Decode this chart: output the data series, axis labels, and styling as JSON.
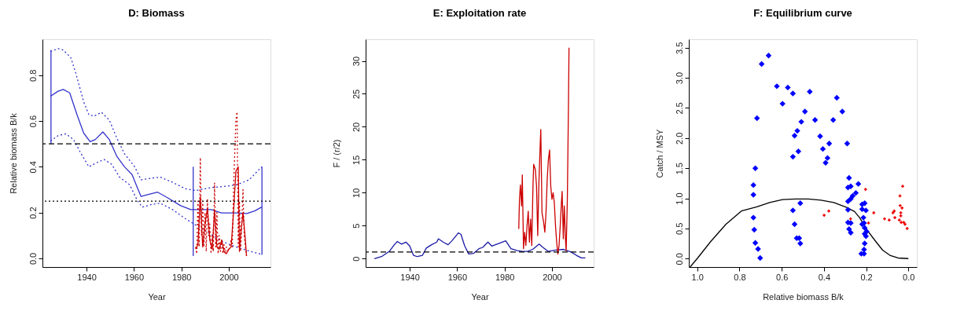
{
  "chart_data": [
    {
      "type": "line",
      "title": "D: Biomass",
      "xlabel": "Year",
      "ylabel": "Relative biomass B/k",
      "xlim": [
        1921.4,
        2017.6
      ],
      "xticks": [
        1940,
        1960,
        1980,
        2000
      ],
      "ylim": [
        -0.038,
        0.957
      ],
      "yticks": [
        {
          "value": 0,
          "label": "0.0"
        },
        {
          "value": 0.2,
          "label": "0.2"
        },
        {
          "value": 0.4,
          "label": "0.4"
        },
        {
          "value": 0.6,
          "label": "0.6"
        },
        {
          "value": 0.8,
          "label": "0.8"
        }
      ],
      "grid": false,
      "ref_lines": [
        {
          "axis": "y",
          "value": 0.5,
          "color": "#000000",
          "line_style": "dashed"
        },
        {
          "axis": "y",
          "value": 0.25,
          "color": "#000000",
          "line_style": "dotted"
        }
      ],
      "series": [
        {
          "color": "#3333cc",
          "line_style": "solid",
          "x": [
            1924.8,
            1928,
            1930.2,
            1932.9,
            1936,
            1938.8,
            1941.5,
            1943.7,
            1946.9,
            1949.6,
            1952.8,
            1956,
            1959.2,
            1961.4,
            1963,
            1965.7,
            1970,
            1974.3,
            1979.7,
            1984,
            1992.6,
            1996.9,
            2003.3,
            2007.6,
            2010.9,
            2013.9
          ],
          "values": [
            0.708,
            0.73,
            0.738,
            0.723,
            0.627,
            0.547,
            0.51,
            0.519,
            0.552,
            0.519,
            0.445,
            0.4,
            0.366,
            0.309,
            0.27,
            0.278,
            0.289,
            0.264,
            0.23,
            0.213,
            0.213,
            0.198,
            0.198,
            0.196,
            0.207,
            0.224
          ]
        },
        {
          "color": "#3333cc",
          "line_style": "dotted",
          "x": [
            1924.8,
            1928,
            1930.2,
            1933.4,
            1935.5,
            1938.8,
            1941,
            1943.1,
            1946.3,
            1949.6,
            1952.8,
            1956,
            1960.3,
            1963,
            1966.7,
            1971,
            1976.3,
            1981.7,
            1986,
            1992.5,
            1998.9,
            2003.3,
            2008.6,
            2013.9
          ],
          "values": [
            0.904,
            0.916,
            0.91,
            0.876,
            0.808,
            0.683,
            0.627,
            0.621,
            0.638,
            0.604,
            0.525,
            0.457,
            0.4,
            0.343,
            0.349,
            0.355,
            0.332,
            0.304,
            0.296,
            0.309,
            0.315,
            0.321,
            0.343,
            0.4
          ]
        },
        {
          "color": "#3333cc",
          "line_style": "dotted",
          "x": [
            1924.8,
            1928,
            1931.3,
            1934.5,
            1937.7,
            1941,
            1944.2,
            1947.4,
            1950.6,
            1953.9,
            1958.2,
            1961.4,
            1963.5,
            1967.8,
            1971,
            1976.3,
            1981.7,
            1987.1,
            1992.5,
            1997.8,
            2003.3,
            2008.6,
            2013.9
          ],
          "values": [
            0.513,
            0.536,
            0.544,
            0.519,
            0.457,
            0.4,
            0.417,
            0.432,
            0.411,
            0.355,
            0.321,
            0.253,
            0.224,
            0.236,
            0.241,
            0.213,
            0.173,
            0.139,
            0.105,
            0.071,
            0.049,
            0.032,
            0.017
          ]
        },
        {
          "color": "#3333cc",
          "line_style": "solid",
          "x": [
            1925,
            1925
          ],
          "values": [
            0.5,
            0.91
          ]
        },
        {
          "color": "#3333cc",
          "line_style": "solid",
          "x": [
            1985,
            1985
          ],
          "values": [
            0.01,
            0.4
          ]
        },
        {
          "color": "#3333cc",
          "line_style": "solid",
          "x": [
            2014,
            2014
          ],
          "values": [
            0.015,
            0.4
          ]
        },
        {
          "color": "#cc0000",
          "line_style": "dotted",
          "x": [
            1986,
            1986.5,
            1987,
            1987.5,
            1988,
            1988.5,
            1989,
            1989.5,
            1990,
            1990.5,
            1991,
            1991.5,
            1992,
            1992.5,
            1993,
            1993.5,
            1994,
            1994.5,
            1995,
            1995.5,
            1996,
            1996.5,
            1997,
            1997.5,
            1998,
            1998.5,
            1999,
            2000,
            2001,
            2001.5,
            2002,
            2002.5,
            2003,
            2003.5,
            2004,
            2004.5,
            2005,
            2005.5,
            2006,
            2006.5,
            2007,
            2007.5
          ],
          "values": [
            0.05,
            0.02,
            0.25,
            0.05,
            0.44,
            0.1,
            0.25,
            0.05,
            0.2,
            0.03,
            0.26,
            0.1,
            0.15,
            0.02,
            0.1,
            0.03,
            0.33,
            0.05,
            0.2,
            0.02,
            0.1,
            0.03,
            0.08,
            0.02,
            0.06,
            0.02,
            0.05,
            0.03,
            0.08,
            0.05,
            0.3,
            0.45,
            0.6,
            0.64,
            0.05,
            0.25,
            0.03,
            0.15,
            0.3,
            0.1,
            0.05,
            0.01
          ]
        },
        {
          "color": "#cc0000",
          "line_style": "solid",
          "x": [
            1986,
            1987,
            1988,
            1989,
            1990,
            1991,
            1992,
            1993,
            1994,
            1995,
            1996,
            1997,
            1998,
            1999,
            2000,
            2001,
            2002,
            2003,
            2004,
            2004.5,
            2005,
            2006,
            2007,
            2007.5
          ],
          "values": [
            0.04,
            0.06,
            0.27,
            0.05,
            0.15,
            0.22,
            0.08,
            0.04,
            0.21,
            0.05,
            0.04,
            0.08,
            0.03,
            0.02,
            0.04,
            0.05,
            0.2,
            0.38,
            0.4,
            0.03,
            0.1,
            0.2,
            0.08,
            0.01
          ]
        }
      ]
    },
    {
      "type": "line",
      "title": "E: Exploitation rate",
      "xlabel": "Year",
      "ylabel": "F / (r/2)",
      "xlim": [
        1921.4,
        2017.6
      ],
      "xticks": [
        1940,
        1960,
        1980,
        2000
      ],
      "ylim": [
        -1.28,
        33.28
      ],
      "yticks": [
        0,
        5,
        10,
        15,
        20,
        25,
        30
      ],
      "grid": false,
      "ref_lines": [
        {
          "axis": "y",
          "value": 1,
          "color": "#000000",
          "line_style": "dashed"
        }
      ],
      "series": [
        {
          "color": "#1a1aa6",
          "line_style": "solid",
          "x": [
            1925.1,
            1928.1,
            1931.4,
            1933.5,
            1934.8,
            1936.5,
            1938.4,
            1940,
            1941.6,
            1943.2,
            1945.4,
            1947,
            1949.2,
            1951.4,
            1952.1,
            1954.1,
            1956.2,
            1957.8,
            1960.5,
            1961.6,
            1963.2,
            1964.9,
            1967,
            1969.2,
            1970.8,
            1973,
            1974.6,
            1976.8,
            1980.5,
            1982.7,
            1985.4,
            1987.6,
            1989.7,
            1991.9,
            1994.6,
            1996.2,
            1998.4,
            2001.6,
            2004.9,
            2008.1,
            2010.3,
            2012.4,
            2014.1
          ],
          "values": [
            0.0,
            0.3,
            1.1,
            2.1,
            2.6,
            2.2,
            2.5,
            1.9,
            0.5,
            0.3,
            0.5,
            1.6,
            2.1,
            2.5,
            3.0,
            2.5,
            2.1,
            2.7,
            3.9,
            3.7,
            1.9,
            0.7,
            0.8,
            1.5,
            1.7,
            2.5,
            1.9,
            2.2,
            2.7,
            1.5,
            1.2,
            1.1,
            1.1,
            1.4,
            2.2,
            1.7,
            1.1,
            1.3,
            1.4,
            1.0,
            0.5,
            0.1,
            0.1
          ]
        },
        {
          "color": "#cc0000",
          "line_style": "solid",
          "x": [
            1986,
            1986.3,
            1986.7,
            1987.2,
            1987.5,
            1988,
            1988.5,
            1989,
            1989.5,
            1990,
            1990.5,
            1991,
            1991.5,
            1992,
            1992.3,
            1993,
            1993.5,
            1994,
            1994.5,
            1995,
            1995.3,
            1995.8,
            1996.5,
            1997,
            1997.5,
            1998,
            1998.5,
            1999,
            1999.5,
            2000,
            2000.5,
            2001,
            2001.5,
            2002,
            2002.5,
            2003,
            2003.5,
            2004,
            2004.3,
            2004.8,
            2005.2,
            2005.7,
            2006,
            2006.5,
            2007,
            2007.2
          ],
          "values": [
            4.5,
            9.0,
            11.2,
            8.0,
            12.7,
            1.5,
            4.0,
            2.0,
            5.0,
            7.2,
            2.5,
            6.0,
            2.0,
            11.0,
            14.3,
            13.5,
            11.0,
            3.5,
            11.5,
            16.8,
            19.6,
            7.0,
            5.5,
            4.0,
            7.0,
            12.0,
            15.0,
            16.5,
            11.0,
            9.0,
            10.0,
            8.5,
            5.0,
            2.5,
            0.7,
            2.0,
            5.0,
            8.5,
            10.2,
            3.0,
            8.0,
            3.0,
            1.2,
            9.0,
            24.2,
            32.0
          ]
        }
      ]
    },
    {
      "type": "scatter",
      "title": "F: Equilibrium curve",
      "xlabel": "Relative biomass B/k",
      "ylabel": "Catch / MSY",
      "xlim": [
        1.04,
        -0.04
      ],
      "xticks": [
        {
          "value": 1,
          "label": "1.0"
        },
        {
          "value": 0.8,
          "label": "0.8"
        },
        {
          "value": 0.6,
          "label": "0.6"
        },
        {
          "value": 0.4,
          "label": "0.4"
        },
        {
          "value": 0.2,
          "label": "0.2"
        },
        {
          "value": 0,
          "label": "0.0"
        }
      ],
      "ylim": [
        -0.14,
        3.64
      ],
      "yticks": [
        {
          "value": 0,
          "label": "0.0"
        },
        {
          "value": 0.5,
          "label": "0.5"
        },
        {
          "value": 1,
          "label": "1.0"
        },
        {
          "value": 1.5,
          "label": "1.5"
        },
        {
          "value": 2,
          "label": "2.0"
        },
        {
          "value": 2.5,
          "label": "2.5"
        },
        {
          "value": 3,
          "label": "3.0"
        },
        {
          "value": 3.5,
          "label": "3.5"
        }
      ],
      "grid": false,
      "series": [
        {
          "type": "line",
          "color": "#000000",
          "line_style": "solid",
          "x": [
            1.034,
            0.998,
            0.937,
            0.864,
            0.791,
            0.718,
            0.657,
            0.596,
            0.535,
            0.474,
            0.414,
            0.353,
            0.292,
            0.255,
            0.231,
            0.195,
            0.158,
            0.122,
            0.085,
            0.049,
            0.0
          ],
          "values": [
            -0.14,
            0.01,
            0.28,
            0.57,
            0.79,
            0.86,
            0.93,
            0.98,
            0.99,
            0.99,
            0.97,
            0.93,
            0.85,
            0.78,
            0.68,
            0.47,
            0.3,
            0.14,
            0.05,
            0.01,
            0.0
          ]
        },
        {
          "color": "#0000ff",
          "marker": "diamond",
          "x": [
            0.662,
            0.695,
            0.623,
            0.571,
            0.547,
            0.467,
            0.596,
            0.339,
            0.717,
            0.49,
            0.313,
            0.507,
            0.442,
            0.356,
            0.526,
            0.539,
            0.418,
            0.375,
            0.29,
            0.521,
            0.405,
            0.547,
            0.383,
            0.392,
            0.725,
            0.734,
            0.734,
            0.734,
            0.73,
            0.725,
            0.712,
            0.702,
            0.547,
            0.512,
            0.539,
            0.529,
            0.517,
            0.512,
            0.281,
            0.286,
            0.273,
            0.237,
            0.249,
            0.264,
            0.273,
            0.286,
            0.286,
            0.286,
            0.273,
            0.281,
            0.273,
            0.219,
            0.207,
            0.219,
            0.201,
            0.213,
            0.21,
            0.207,
            0.198,
            0.207,
            0.201,
            0.207,
            0.21,
            0.223,
            0.21,
            0.219
          ],
          "values": [
            3.37,
            3.23,
            2.86,
            2.84,
            2.74,
            2.77,
            2.57,
            2.67,
            2.33,
            2.44,
            2.44,
            2.27,
            2.3,
            2.3,
            2.12,
            2.04,
            2.03,
            1.91,
            1.91,
            1.78,
            1.82,
            1.69,
            1.67,
            1.59,
            1.5,
            1.22,
            1.06,
            0.68,
            0.48,
            0.26,
            0.16,
            0.01,
            0.8,
            0.92,
            0.57,
            0.34,
            0.34,
            0.25,
            1.34,
            1.18,
            1.2,
            1.24,
            1.09,
            1.04,
            0.99,
            0.95,
            0.81,
            0.6,
            0.59,
            0.49,
            0.43,
            0.9,
            0.92,
            0.82,
            0.8,
            0.68,
            0.59,
            0.51,
            0.45,
            0.41,
            0.37,
            0.25,
            0.15,
            0.08,
            0.08,
            0.57
          ]
        },
        {
          "color": "#ee0000",
          "marker": "cross",
          "x": [
            0.399,
            0.377,
            0.274,
            0.203,
            0.189,
            0.164,
            0.113,
            0.091,
            0.073,
            0.067,
            0.064,
            0.04,
            0.027,
            0.039,
            0.03,
            0.036,
            0.036,
            0.043,
            0.034,
            0.022,
            0.016,
            0.006
          ],
          "values": [
            0.72,
            0.79,
            0.66,
            1.15,
            0.59,
            0.76,
            0.66,
            0.64,
            0.76,
            0.79,
            0.68,
            1.04,
            1.2,
            0.88,
            0.84,
            0.76,
            0.71,
            0.64,
            0.6,
            0.6,
            0.57,
            0.5
          ]
        }
      ]
    }
  ]
}
